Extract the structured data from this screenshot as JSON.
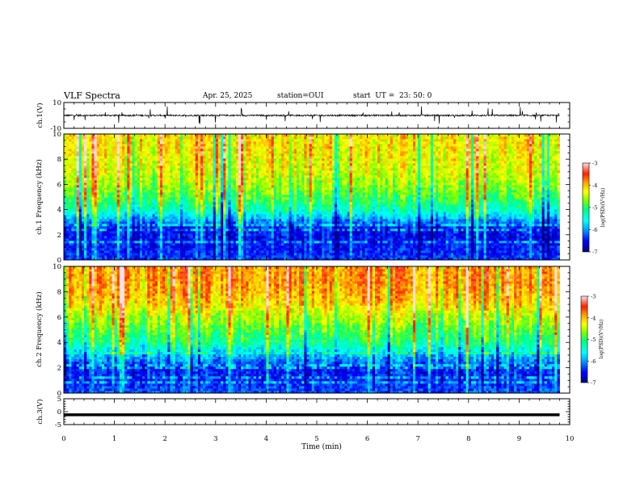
{
  "header": {
    "title": "VLF Spectra",
    "date": "Apr. 25, 2025",
    "station": "station=OUI",
    "start": "start  UT =  23: 50: 0"
  },
  "chart_data": [
    {
      "type": "line",
      "panel": "ch1-waveform",
      "ylabel": "ch.1(V)",
      "ylim": [
        -10,
        10
      ],
      "yticks": [
        -10,
        10
      ],
      "xlim": [
        0,
        10
      ],
      "series": [
        {
          "mean": 0,
          "baseline_noise": 0.6,
          "spike_amplitude": 7
        }
      ],
      "color": "#000000"
    },
    {
      "type": "heatmap",
      "panel": "ch1-spectrogram",
      "ylabel": "ch.1 Frequency (kHz)",
      "ylim": [
        0,
        10
      ],
      "yticks": [
        0,
        2,
        4,
        6,
        8,
        10
      ],
      "xlim": [
        0,
        9.8
      ],
      "colorbar": {
        "label": "log(PSD)(V²/Hz)",
        "range": [
          -7,
          -3
        ],
        "ticks": [
          -3,
          -4,
          -5,
          -6,
          -7
        ]
      },
      "log_psd_profile": [
        {
          "f": 0.0,
          "v": -6.3
        },
        {
          "f": 0.5,
          "v": -6.4
        },
        {
          "f": 1.5,
          "v": -6.5
        },
        {
          "f": 2.5,
          "v": -6.5
        },
        {
          "f": 3.2,
          "v": -6.0
        },
        {
          "f": 4.0,
          "v": -5.3
        },
        {
          "f": 5.0,
          "v": -4.9
        },
        {
          "f": 6.0,
          "v": -4.6
        },
        {
          "f": 7.0,
          "v": -4.4
        },
        {
          "f": 8.0,
          "v": -4.3
        },
        {
          "f": 9.0,
          "v": -4.2
        },
        {
          "f": 10.0,
          "v": -4.2
        }
      ]
    },
    {
      "type": "heatmap",
      "panel": "ch2-spectrogram",
      "ylabel": "ch.2 Frequency (kHz)",
      "ylim": [
        0,
        10
      ],
      "yticks": [
        0,
        2,
        4,
        6,
        8,
        10
      ],
      "xlim": [
        0,
        9.8
      ],
      "colorbar": {
        "label": "log(PSD)(V²/Hz)",
        "range": [
          -7,
          -3
        ],
        "ticks": [
          -3,
          -4,
          -5,
          -6,
          -7
        ]
      },
      "log_psd_profile": [
        {
          "f": 0.0,
          "v": -6.2
        },
        {
          "f": 1.0,
          "v": -6.4
        },
        {
          "f": 2.0,
          "v": -6.4
        },
        {
          "f": 3.0,
          "v": -5.8
        },
        {
          "f": 4.0,
          "v": -5.1
        },
        {
          "f": 5.0,
          "v": -4.8
        },
        {
          "f": 6.0,
          "v": -4.5
        },
        {
          "f": 7.0,
          "v": -4.1
        },
        {
          "f": 8.0,
          "v": -3.9
        },
        {
          "f": 9.0,
          "v": -3.8
        },
        {
          "f": 10.0,
          "v": -3.8
        }
      ]
    },
    {
      "type": "line",
      "panel": "ch3-waveform",
      "ylabel": "ch.3(V)",
      "ylim": [
        -5,
        5
      ],
      "yticks": [
        -5,
        0,
        5
      ],
      "xlim": [
        0,
        10
      ],
      "series": [
        {
          "constant": -1.2
        }
      ],
      "color": "#000000"
    }
  ],
  "xaxis": {
    "label": "Time (min)",
    "ticks": [
      "0",
      "1",
      "2",
      "3",
      "4",
      "5",
      "6",
      "7",
      "8",
      "9",
      "10"
    ]
  },
  "colors": {
    "scale": [
      "#000078",
      "#0000ff",
      "#00a0ff",
      "#00ffff",
      "#00ff80",
      "#80ff00",
      "#ffff00",
      "#ffa000",
      "#ff2000",
      "#ffe0e0"
    ]
  }
}
